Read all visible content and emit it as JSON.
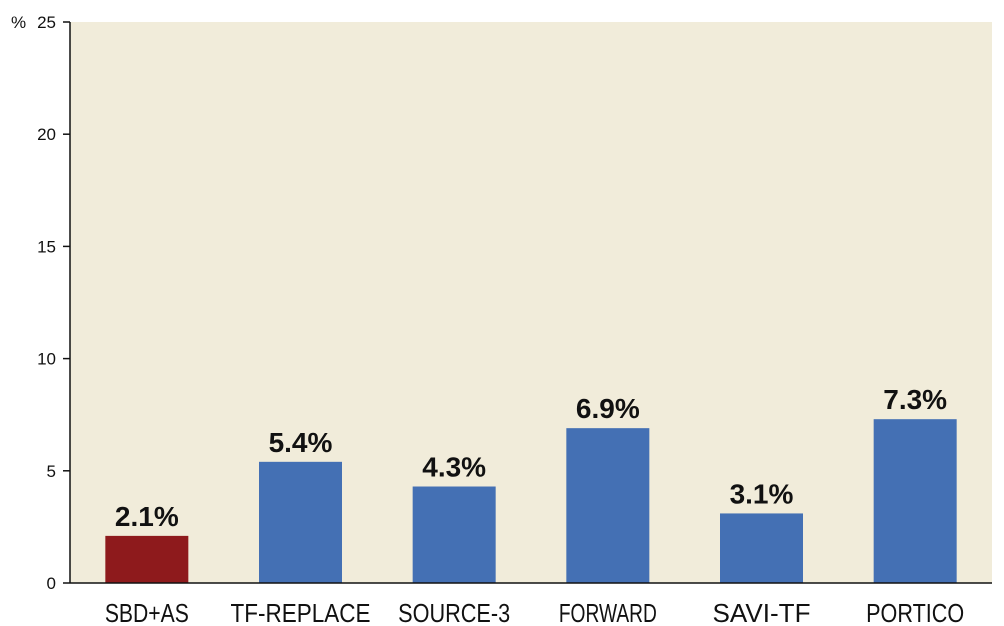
{
  "chart_data": {
    "type": "bar",
    "title": "",
    "xlabel": "",
    "ylabel": "",
    "y_unit": "%",
    "ylim": [
      0,
      25
    ],
    "y_ticks": [
      0,
      5,
      10,
      15,
      20,
      25
    ],
    "grid": false,
    "background_color": "#f1ecda",
    "categories": [
      "SBD+AS",
      "TF-REPLACE",
      "SOURCE-3",
      "FORWARD",
      "SAVI-TF",
      "PORTICO"
    ],
    "values": [
      2.1,
      5.4,
      4.3,
      6.9,
      3.1,
      7.3
    ],
    "value_labels": [
      "2.1%",
      "5.4%",
      "4.3%",
      "6.9%",
      "3.1%",
      "7.3%"
    ],
    "bar_colors": [
      "#8e1a1c",
      "#4470b4",
      "#4470b4",
      "#4470b4",
      "#4470b4",
      "#4470b4"
    ]
  }
}
